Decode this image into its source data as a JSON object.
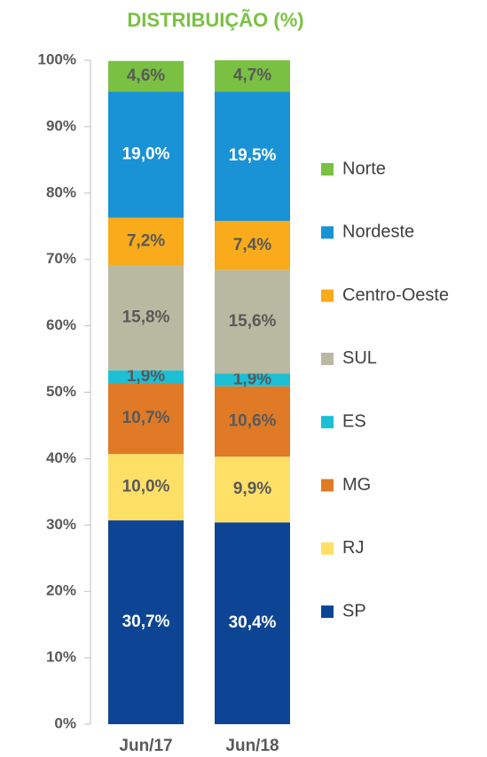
{
  "chart_data": {
    "type": "stacked_bar",
    "title": "DISTRIBUIÇÃO (%)",
    "categories": [
      "Jun/17",
      "Jun/18"
    ],
    "series": [
      {
        "name": "SP",
        "color": "#0d4594",
        "values": [
          30.7,
          30.4
        ],
        "value_labels": [
          "30,7%",
          "30,4%"
        ]
      },
      {
        "name": "RJ",
        "color": "#ffe066",
        "values": [
          10.0,
          9.9
        ],
        "value_labels": [
          "10,0%",
          "9,9%"
        ]
      },
      {
        "name": "MG",
        "color": "#e07a26",
        "values": [
          10.7,
          10.6
        ],
        "value_labels": [
          "10,7%",
          "10,6%"
        ]
      },
      {
        "name": "ES",
        "color": "#1dbfd5",
        "values": [
          1.9,
          1.9
        ],
        "value_labels": [
          "1,9%",
          "1,9%"
        ]
      },
      {
        "name": "SUL",
        "color": "#b9b9a1",
        "values": [
          15.8,
          15.6
        ],
        "value_labels": [
          "15,8%",
          "15,6%"
        ]
      },
      {
        "name": "Centro-Oeste",
        "color": "#f9ab1b",
        "values": [
          7.2,
          7.4
        ],
        "value_labels": [
          "7,2%",
          "7,4%"
        ]
      },
      {
        "name": "Nordeste",
        "color": "#1992d6",
        "values": [
          19.0,
          19.5
        ],
        "value_labels": [
          "19,0%",
          "19,5%"
        ]
      },
      {
        "name": "Norte",
        "color": "#7ac143",
        "values": [
          4.6,
          4.7
        ],
        "value_labels": [
          "4,6%",
          "4,7%"
        ]
      }
    ],
    "ylim": [
      0,
      100
    ],
    "yticks": [
      {
        "value": 0,
        "label": "0%"
      },
      {
        "value": 10,
        "label": "10%"
      },
      {
        "value": 20,
        "label": "20%"
      },
      {
        "value": 30,
        "label": "30%"
      },
      {
        "value": 40,
        "label": "40%"
      },
      {
        "value": 50,
        "label": "50%"
      },
      {
        "value": 60,
        "label": "60%"
      },
      {
        "value": 70,
        "label": "70%"
      },
      {
        "value": 80,
        "label": "80%"
      },
      {
        "value": 90,
        "label": "90%"
      },
      {
        "value": 100,
        "label": "100%"
      }
    ],
    "legend": "right",
    "grid": false
  }
}
